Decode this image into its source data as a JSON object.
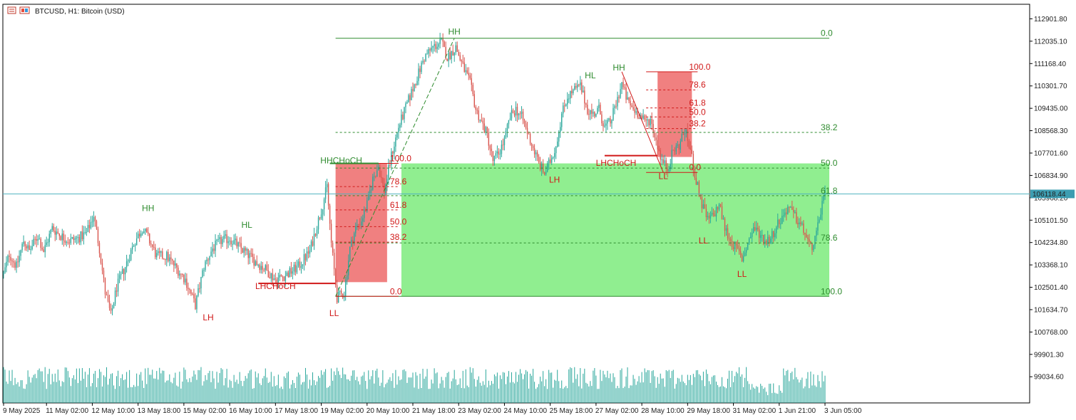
{
  "window": {
    "symbol_title": "BTCUSD, H1:  Bitcoin (USD)"
  },
  "colors": {
    "background": "#ffffff",
    "grid": "#d9d9d9",
    "axis": "#000000",
    "bull_candle": "#2aa79b",
    "bear_candle": "#d9564f",
    "volume": "#2aa79b",
    "price_line": "#4fb3bf",
    "price_tag_bg": "#3d9db1",
    "bull_label": "#2e8b2e",
    "bear_label": "#d01818",
    "bear_zone": "#f08080",
    "bull_zone": "#90ee90",
    "bull_line": "#2e8b2e",
    "bear_line": "#d01818"
  },
  "chart_data": {
    "type": "candlestick",
    "title": "",
    "timeframe": "H1",
    "ylim": [
      98600,
      113300
    ],
    "current_price": "106118.44",
    "current_price_value": 106118.44,
    "y_ticks": [
      {
        "value": 112901.8,
        "label": "112901.80"
      },
      {
        "value": 112035.1,
        "label": "112035.10"
      },
      {
        "value": 111168.4,
        "label": "111168.40"
      },
      {
        "value": 110301.7,
        "label": "110301.70"
      },
      {
        "value": 109435.0,
        "label": "109435.00"
      },
      {
        "value": 108568.3,
        "label": "108568.30"
      },
      {
        "value": 107701.6,
        "label": "107701.60"
      },
      {
        "value": 106834.9,
        "label": "106834.90"
      },
      {
        "value": 105968.2,
        "label": "105968.20"
      },
      {
        "value": 105101.5,
        "label": "105101.50"
      },
      {
        "value": 104234.8,
        "label": "104234.80"
      },
      {
        "value": 103368.1,
        "label": "103368.10"
      },
      {
        "value": 102501.4,
        "label": "102501.40"
      },
      {
        "value": 101634.7,
        "label": "101634.70"
      },
      {
        "value": 100768.0,
        "label": "100768.00"
      },
      {
        "value": 99901.3,
        "label": "99901.30"
      },
      {
        "value": 99034.6,
        "label": "99034.60"
      }
    ],
    "x_ticks": [
      {
        "t": 0,
        "label": "9 May 2025"
      },
      {
        "t": 30,
        "label": "11 May 02:00"
      },
      {
        "t": 62,
        "label": "12 May 10:00"
      },
      {
        "t": 94,
        "label": "13 May 18:00"
      },
      {
        "t": 126,
        "label": "15 May 02:00"
      },
      {
        "t": 158,
        "label": "16 May 10:00"
      },
      {
        "t": 190,
        "label": "17 May 18:00"
      },
      {
        "t": 222,
        "label": "19 May 02:00"
      },
      {
        "t": 254,
        "label": "20 May 10:00"
      },
      {
        "t": 286,
        "label": "21 May 18:00"
      },
      {
        "t": 318,
        "label": "23 May 02:00"
      },
      {
        "t": 350,
        "label": "24 May 10:00"
      },
      {
        "t": 382,
        "label": "25 May 18:00"
      },
      {
        "t": 414,
        "label": "27 May 02:00"
      },
      {
        "t": 446,
        "label": "28 May 10:00"
      },
      {
        "t": 478,
        "label": "29 May 18:00"
      },
      {
        "t": 510,
        "label": "31 May 02:00"
      },
      {
        "t": 542,
        "label": "1 Jun 21:00"
      },
      {
        "t": 574,
        "label": "3 Jun 05:00"
      }
    ],
    "bar_count": 575,
    "path_keypoints": [
      [
        0,
        103000
      ],
      [
        4,
        103800
      ],
      [
        9,
        103300
      ],
      [
        14,
        104300
      ],
      [
        18,
        103900
      ],
      [
        24,
        104500
      ],
      [
        28,
        103900
      ],
      [
        34,
        104800
      ],
      [
        40,
        104500
      ],
      [
        46,
        104300
      ],
      [
        52,
        104400
      ],
      [
        58,
        104600
      ],
      [
        63,
        105300
      ],
      [
        67,
        104000
      ],
      [
        71,
        102300
      ],
      [
        75,
        101400
      ],
      [
        79,
        102500
      ],
      [
        85,
        103300
      ],
      [
        91,
        104200
      ],
      [
        97,
        104800
      ],
      [
        101,
        104400
      ],
      [
        107,
        103700
      ],
      [
        114,
        103700
      ],
      [
        120,
        103300
      ],
      [
        127,
        102800
      ],
      [
        134,
        101800
      ],
      [
        140,
        103300
      ],
      [
        146,
        104000
      ],
      [
        152,
        104300
      ],
      [
        158,
        104400
      ],
      [
        164,
        104100
      ],
      [
        170,
        103800
      ],
      [
        176,
        103500
      ],
      [
        183,
        103200
      ],
      [
        190,
        102800
      ],
      [
        198,
        103000
      ],
      [
        206,
        103300
      ],
      [
        214,
        103900
      ],
      [
        218,
        104700
      ],
      [
        222,
        105500
      ],
      [
        226,
        106400
      ],
      [
        229,
        104200
      ],
      [
        233,
        102100
      ],
      [
        238,
        102300
      ],
      [
        242,
        104000
      ],
      [
        246,
        104800
      ],
      [
        250,
        105100
      ],
      [
        254,
        105700
      ],
      [
        258,
        106700
      ],
      [
        262,
        107200
      ],
      [
        266,
        106200
      ],
      [
        271,
        107600
      ],
      [
        276,
        108700
      ],
      [
        282,
        109600
      ],
      [
        288,
        110500
      ],
      [
        294,
        111400
      ],
      [
        300,
        111800
      ],
      [
        306,
        112000
      ],
      [
        310,
        111400
      ],
      [
        316,
        111800
      ],
      [
        320,
        111200
      ],
      [
        326,
        110400
      ],
      [
        330,
        109400
      ],
      [
        334,
        108900
      ],
      [
        338,
        108400
      ],
      [
        342,
        107400
      ],
      [
        346,
        107700
      ],
      [
        350,
        108200
      ],
      [
        354,
        109100
      ],
      [
        358,
        109400
      ],
      [
        362,
        109100
      ],
      [
        366,
        108500
      ],
      [
        370,
        107900
      ],
      [
        374,
        107300
      ],
      [
        378,
        106900
      ],
      [
        382,
        107400
      ],
      [
        386,
        108000
      ],
      [
        390,
        109200
      ],
      [
        394,
        109900
      ],
      [
        398,
        110100
      ],
      [
        403,
        110300
      ],
      [
        408,
        109400
      ],
      [
        412,
        109200
      ],
      [
        416,
        109400
      ],
      [
        420,
        108700
      ],
      [
        424,
        108900
      ],
      [
        428,
        109600
      ],
      [
        432,
        110400
      ],
      [
        436,
        109700
      ],
      [
        440,
        109400
      ],
      [
        444,
        109200
      ],
      [
        448,
        108900
      ],
      [
        452,
        109000
      ],
      [
        456,
        108200
      ],
      [
        460,
        107400
      ],
      [
        464,
        107100
      ],
      [
        468,
        107800
      ],
      [
        472,
        108000
      ],
      [
        476,
        108600
      ],
      [
        480,
        107800
      ],
      [
        484,
        106600
      ],
      [
        488,
        105700
      ],
      [
        492,
        105100
      ],
      [
        496,
        105300
      ],
      [
        500,
        105700
      ],
      [
        504,
        104800
      ],
      [
        508,
        104300
      ],
      [
        512,
        104000
      ],
      [
        516,
        103600
      ],
      [
        520,
        104200
      ],
      [
        524,
        104800
      ],
      [
        528,
        104600
      ],
      [
        532,
        104300
      ],
      [
        536,
        104400
      ],
      [
        540,
        104900
      ],
      [
        544,
        105200
      ],
      [
        548,
        105600
      ],
      [
        552,
        105300
      ],
      [
        556,
        105000
      ],
      [
        560,
        104600
      ],
      [
        564,
        104000
      ],
      [
        568,
        104500
      ],
      [
        572,
        105800
      ],
      [
        574,
        106100
      ]
    ],
    "structure_labels": [
      {
        "text": "HH",
        "t": 101,
        "price": 105450,
        "color": "bull"
      },
      {
        "text": "HL",
        "t": 170,
        "price": 104800,
        "color": "bull"
      },
      {
        "text": "LH",
        "t": 143,
        "price": 101220,
        "color": "bear"
      },
      {
        "text": "LHCHoCH",
        "t": 190,
        "price": 102440,
        "color": "bear"
      },
      {
        "text": "LL",
        "t": 231,
        "price": 101380,
        "color": "bear"
      },
      {
        "text": "HHCHoCH",
        "t": 236,
        "price": 107300,
        "color": "bull"
      },
      {
        "text": "HH",
        "t": 315,
        "price": 112300,
        "color": "bull"
      },
      {
        "text": "LH",
        "t": 385,
        "price": 106550,
        "color": "bear"
      },
      {
        "text": "HL",
        "t": 410,
        "price": 110600,
        "color": "bull"
      },
      {
        "text": "HH",
        "t": 430,
        "price": 110900,
        "color": "bull"
      },
      {
        "text": "LHCHoCH",
        "t": 428,
        "price": 107200,
        "color": "bear"
      },
      {
        "text": "LL",
        "t": 461,
        "price": 106700,
        "color": "bear"
      },
      {
        "text": "LL",
        "t": 489,
        "price": 104200,
        "color": "bear"
      },
      {
        "text": "LL",
        "t": 516,
        "price": 102900,
        "color": "bear"
      }
    ],
    "fib_bull": {
      "t_start": 278,
      "t_end": 577,
      "price_top": 107300,
      "price_bottom": 102150,
      "line_t_start": 232,
      "line_t_end": 577,
      "levels": [
        {
          "label": "0.0",
          "price": 112150
        },
        {
          "label": "38.2",
          "price": 108500
        },
        {
          "label": "50.0",
          "price": 107120
        },
        {
          "label": "61.8",
          "price": 106050
        },
        {
          "label": "78.6",
          "price": 104220
        },
        {
          "label": "100.0",
          "price": 102150
        }
      ]
    },
    "fib_bear_1": {
      "t_start": 232,
      "t_end": 268,
      "price_top": 107300,
      "price_bottom": 102700,
      "levels": [
        {
          "label": "100.0",
          "price": 107300
        },
        {
          "label": "78.6",
          "price": 106400
        },
        {
          "label": "61.8",
          "price": 105500
        },
        {
          "label": "50.0",
          "price": 104850
        },
        {
          "label": "38.2",
          "price": 104250
        },
        {
          "label": "0.0",
          "price": 102150
        }
      ]
    },
    "fib_bear_2": {
      "t_start": 457,
      "t_end": 481,
      "price_top": 110850,
      "price_bottom": 107550,
      "levels": [
        {
          "label": "100.0",
          "price": 110850
        },
        {
          "label": "78.6",
          "price": 110150
        },
        {
          "label": "61.8",
          "price": 109450
        },
        {
          "label": "50.0",
          "price": 109100
        },
        {
          "label": "38.2",
          "price": 108650
        },
        {
          "label": "0.0",
          "price": 106950
        }
      ]
    }
  }
}
